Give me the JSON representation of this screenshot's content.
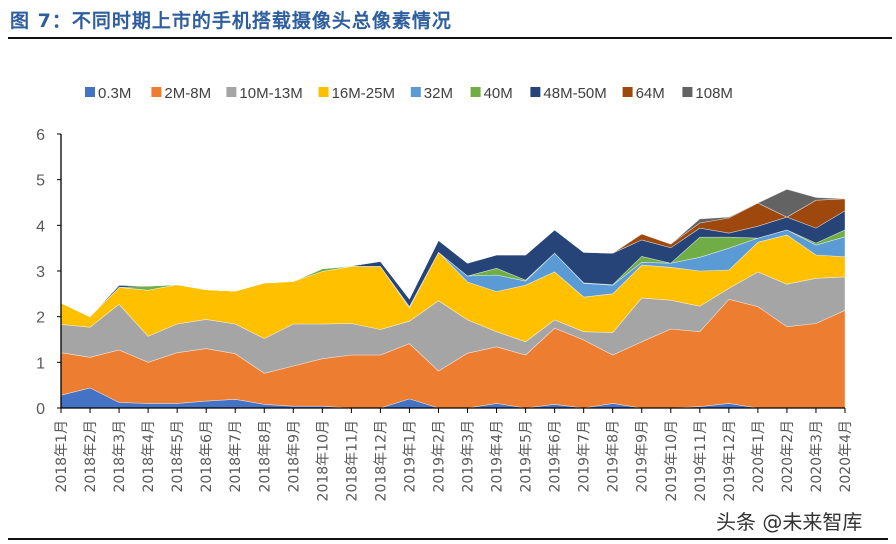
{
  "header": {
    "title": "图 7：不同时期上市的手机搭载摄像头总像素情况"
  },
  "watermark": "头条 @未来智库",
  "chart_data": {
    "type": "area",
    "stacked": true,
    "title": "",
    "xlabel": "",
    "ylabel": "",
    "ylim": [
      0,
      6
    ],
    "yticks": [
      "0",
      "1",
      "2",
      "3",
      "4",
      "5",
      "6"
    ],
    "grid": false,
    "legend_position": "top",
    "categories": [
      "2018年1月",
      "2018年2月",
      "2018年3月",
      "2018年4月",
      "2018年5月",
      "2018年6月",
      "2018年7月",
      "2018年8月",
      "2018年9月",
      "2018年10月",
      "2018年11月",
      "2018年12月",
      "2019年1月",
      "2019年2月",
      "2019年3月",
      "2019年4月",
      "2019年5月",
      "2019年6月",
      "2019年7月",
      "2019年8月",
      "2019年9月",
      "2019年10月",
      "2019年11月",
      "2019年12月",
      "2020年1月",
      "2020年2月",
      "2020年3月",
      "2020年4月"
    ],
    "series": [
      {
        "name": "0.3M",
        "color": "#4472C4",
        "values": [
          0.28,
          0.44,
          0.12,
          0.1,
          0.1,
          0.15,
          0.19,
          0.08,
          0.04,
          0.04,
          0,
          0,
          0.2,
          0,
          0,
          0.1,
          0,
          0.08,
          0,
          0.1,
          0,
          0,
          0.03,
          0.1,
          0,
          0,
          0,
          0
        ]
      },
      {
        "name": "2M-8M",
        "color": "#ED7D31",
        "values": [
          0.93,
          0.67,
          1.15,
          0.9,
          1.11,
          1.15,
          1.0,
          0.68,
          0.88,
          1.04,
          1.16,
          1.16,
          1.21,
          0.81,
          1.2,
          1.24,
          1.16,
          1.67,
          1.49,
          1.06,
          1.45,
          1.73,
          1.64,
          2.28,
          2.22,
          1.78,
          1.85,
          2.14
        ]
      },
      {
        "name": "10M-13M",
        "color": "#A5A5A5",
        "values": [
          0.62,
          0.66,
          1.0,
          0.57,
          0.63,
          0.64,
          0.65,
          0.76,
          0.92,
          0.76,
          0.69,
          0.56,
          0.49,
          1.54,
          0.73,
          0.33,
          0.29,
          0.18,
          0.18,
          0.49,
          0.96,
          0.63,
          0.56,
          0.24,
          0.76,
          0.93,
          0.99,
          0.73
        ]
      },
      {
        "name": "16M-25M",
        "color": "#FFC000",
        "values": [
          0.47,
          0.23,
          0.37,
          1.01,
          0.86,
          0.65,
          0.72,
          1.22,
          0.93,
          1.15,
          1.25,
          1.38,
          0.29,
          1.06,
          0.83,
          0.88,
          1.24,
          1.05,
          0.76,
          0.85,
          0.72,
          0.72,
          0.77,
          0.4,
          0.65,
          1.08,
          0.51,
          0.44
        ]
      },
      {
        "name": "32M",
        "color": "#5B9BD5",
        "values": [
          0,
          0,
          0,
          0,
          0,
          0,
          0,
          0,
          0,
          0,
          0,
          0,
          0.03,
          0,
          0.13,
          0.36,
          0.09,
          0.41,
          0.3,
          0.19,
          0.06,
          0.09,
          0.3,
          0.48,
          0.09,
          0.11,
          0.22,
          0.44
        ]
      },
      {
        "name": "40M",
        "color": "#70AD47",
        "values": [
          0,
          0,
          0,
          0.09,
          0,
          0,
          0,
          0,
          0,
          0.06,
          0,
          0,
          0,
          0,
          0,
          0.15,
          0.02,
          0,
          0.01,
          0.01,
          0.13,
          0,
          0.44,
          0.24,
          0,
          0,
          0.04,
          0.15
        ]
      },
      {
        "name": "48M-50M",
        "color": "#264478",
        "values": [
          0,
          0,
          0.05,
          0,
          0,
          0,
          0,
          0,
          0,
          0,
          0.01,
          0.11,
          0.17,
          0.26,
          0.28,
          0.29,
          0.55,
          0.51,
          0.67,
          0.69,
          0.36,
          0.34,
          0.2,
          0.09,
          0.26,
          0.28,
          0.33,
          0.42
        ]
      },
      {
        "name": "64M",
        "color": "#9E480E",
        "values": [
          0,
          0,
          0,
          0,
          0,
          0,
          0,
          0,
          0,
          0,
          0,
          0,
          0,
          0,
          0,
          0,
          0,
          0,
          0,
          0,
          0.13,
          0.08,
          0.11,
          0.33,
          0.51,
          0,
          0.61,
          0.26
        ]
      },
      {
        "name": "108M",
        "color": "#636363",
        "values": [
          0,
          0,
          0,
          0,
          0,
          0,
          0,
          0,
          0,
          0,
          0,
          0,
          0,
          0,
          0,
          0,
          0,
          0,
          0,
          0,
          0,
          0,
          0.09,
          0.02,
          0,
          0.61,
          0.06,
          0
        ]
      }
    ]
  }
}
